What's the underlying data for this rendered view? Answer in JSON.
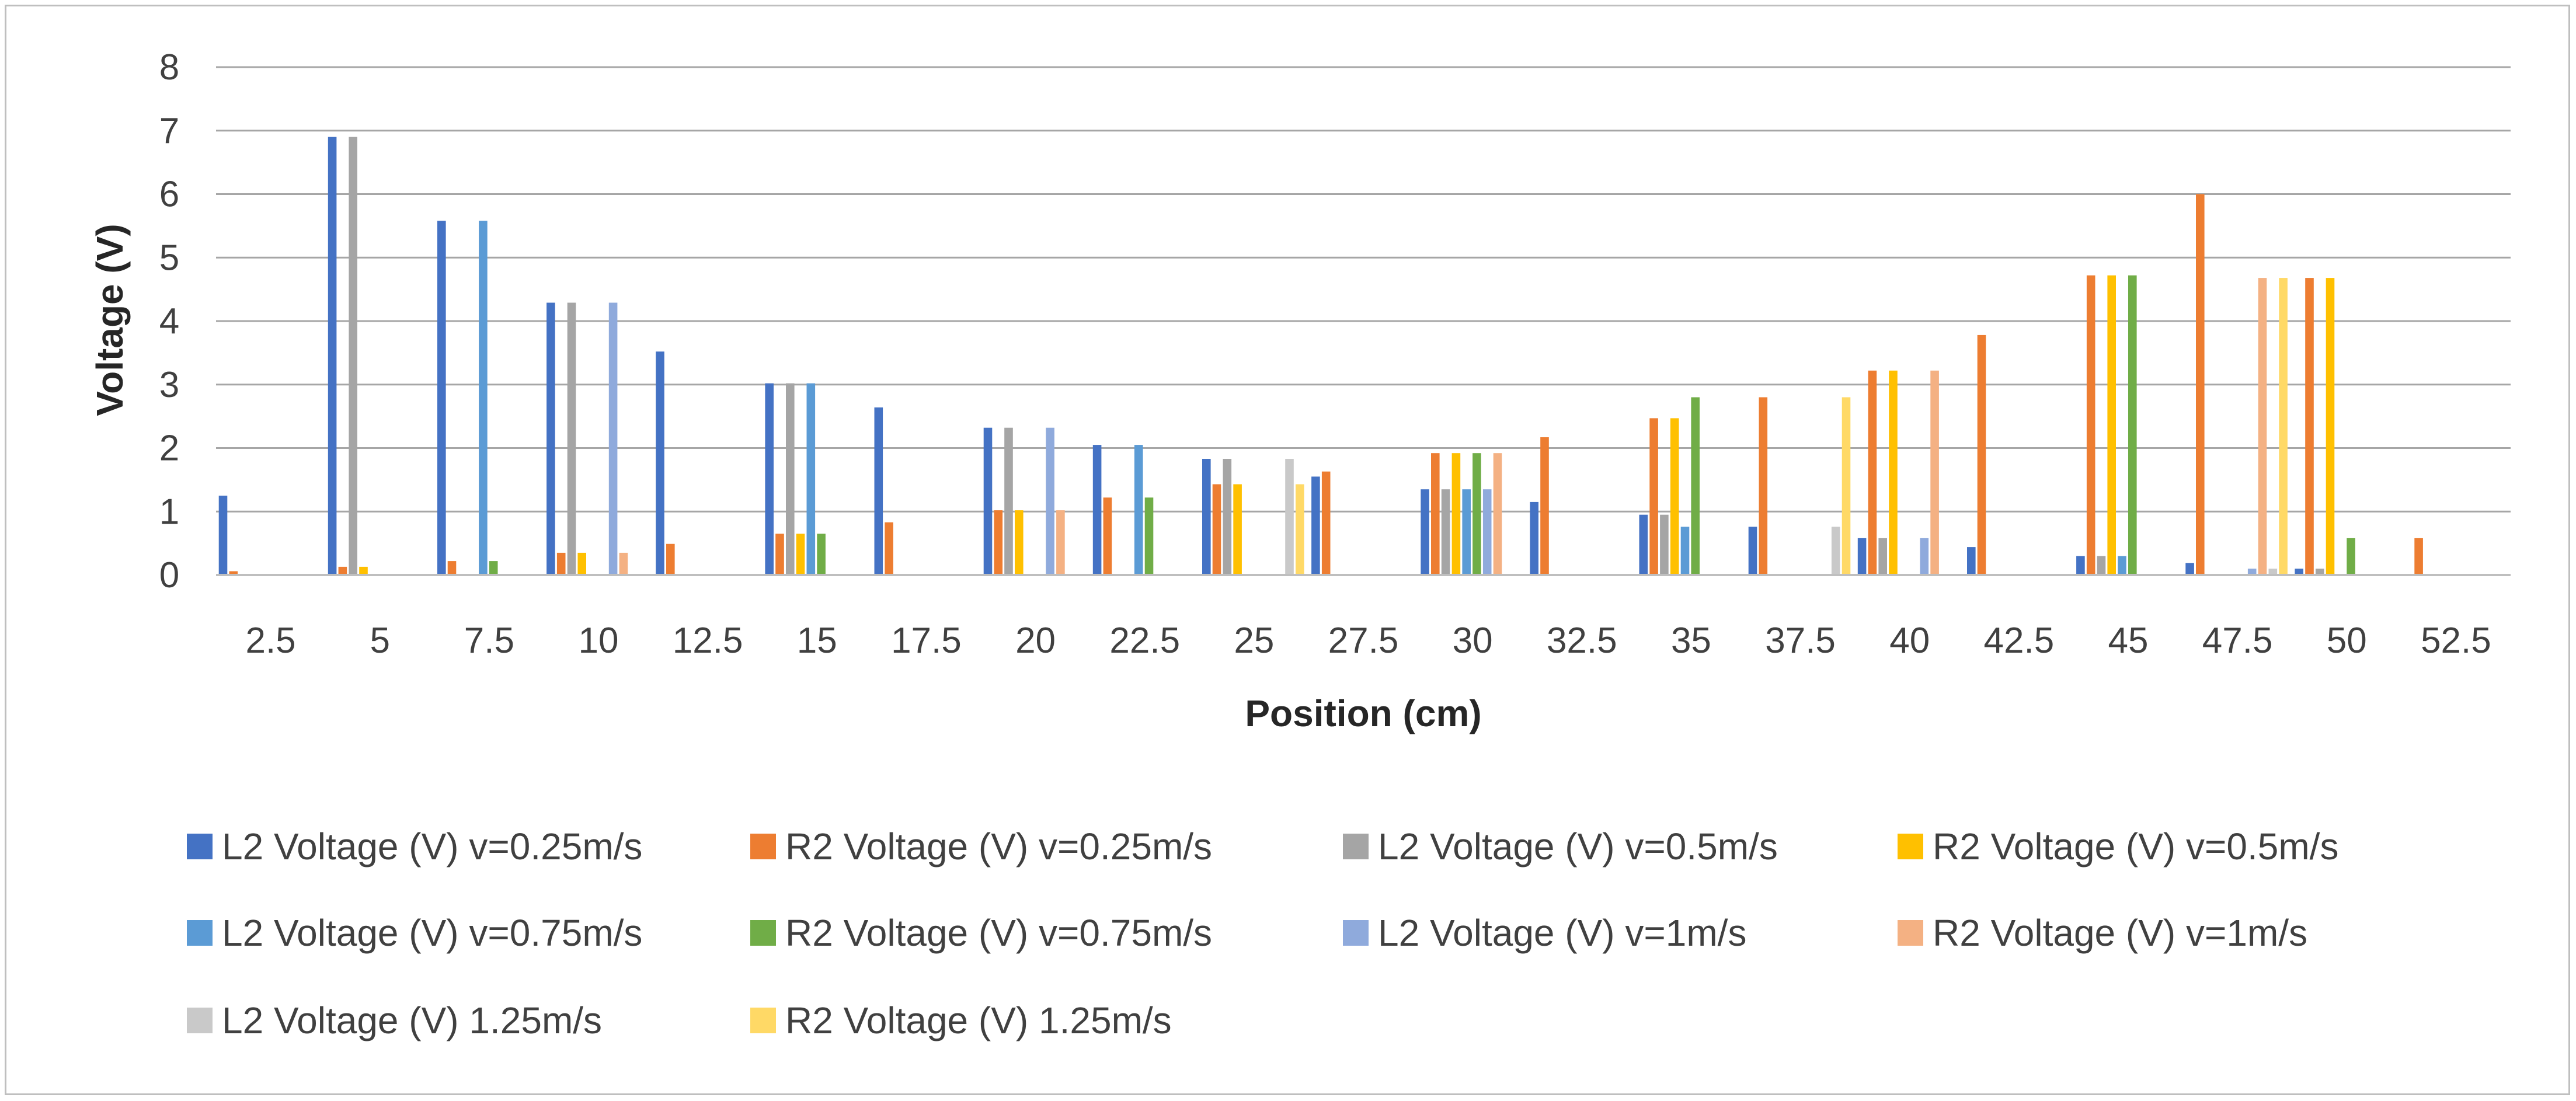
{
  "chart_data": {
    "type": "bar",
    "title": "",
    "xlabel": "Position (cm)",
    "ylabel": "Voltage (V)",
    "ylim": [
      0,
      8
    ],
    "yticks": [
      "0",
      "1",
      "2",
      "3",
      "4",
      "5",
      "6",
      "7",
      "8"
    ],
    "grid": true,
    "legend_position": "bottom",
    "categories": [
      "2.5",
      "5",
      "7.5",
      "10",
      "12.5",
      "15",
      "17.5",
      "20",
      "22.5",
      "25",
      "27.5",
      "30",
      "32.5",
      "35",
      "37.5",
      "40",
      "42.5",
      "45",
      "47.5",
      "50",
      "52.5"
    ],
    "series": [
      {
        "name": "L2 Voltage (V) v=0.25m/s",
        "color": "#4472C4",
        "values": [
          1.25,
          6.9,
          5.58,
          4.29,
          3.52,
          3.02,
          2.64,
          2.32,
          2.05,
          1.83,
          1.55,
          1.35,
          1.15,
          0.95,
          0.76,
          0.58,
          0.44,
          0.3,
          0.19,
          0.1,
          0
        ]
      },
      {
        "name": "R2 Voltage (V) v=0.25m/s",
        "color": "#ED7D31",
        "values": [
          0.06,
          0.13,
          0.22,
          0.35,
          0.49,
          0.65,
          0.83,
          1.02,
          1.22,
          1.43,
          1.63,
          1.92,
          2.17,
          2.47,
          2.8,
          3.22,
          3.78,
          4.72,
          6.0,
          4.68,
          0.58
        ]
      },
      {
        "name": "L2 Voltage (V) v=0.5m/s",
        "color": "#A5A5A5",
        "values": [
          0,
          6.9,
          0,
          4.29,
          0,
          3.02,
          0,
          2.32,
          0,
          1.83,
          0,
          1.35,
          0,
          0.95,
          0,
          0.58,
          0,
          0.3,
          0,
          0.1,
          0
        ]
      },
      {
        "name": "R2 Voltage (V) v=0.5m/s",
        "color": "#FFC000",
        "values": [
          0,
          0.13,
          0,
          0.35,
          0,
          0.65,
          0,
          1.02,
          0,
          1.43,
          0,
          1.92,
          0,
          2.47,
          0,
          3.22,
          0,
          4.72,
          0,
          4.68,
          0
        ]
      },
      {
        "name": "L2 Voltage (V) v=0.75m/s",
        "color": "#5B9BD5",
        "values": [
          0,
          0,
          5.58,
          0,
          0,
          3.02,
          0,
          0,
          2.05,
          0,
          0,
          1.35,
          0,
          0.76,
          0,
          0,
          0,
          0.3,
          0,
          0,
          0
        ]
      },
      {
        "name": "R2 Voltage (V) v=0.75m/s",
        "color": "#70AD47",
        "values": [
          0,
          0,
          0.22,
          0,
          0,
          0.65,
          0,
          0,
          1.22,
          0,
          0,
          1.92,
          0,
          2.8,
          0,
          0,
          0,
          4.72,
          0,
          0.58,
          0
        ]
      },
      {
        "name": "L2 Voltage (V) v=1m/s",
        "color": "#8FAADC",
        "values": [
          0,
          0,
          0,
          4.29,
          0,
          0,
          0,
          2.32,
          0,
          0,
          0,
          1.35,
          0,
          0,
          0,
          0.58,
          0,
          0,
          0.1,
          0,
          0
        ]
      },
      {
        "name": "R2 Voltage (V) v=1m/s",
        "color": "#F4B183",
        "values": [
          0,
          0,
          0,
          0.35,
          0,
          0,
          0,
          1.02,
          0,
          0,
          0,
          1.92,
          0,
          0,
          0,
          3.22,
          0,
          0,
          4.68,
          0,
          0
        ]
      },
      {
        "name": "L2 Voltage (V) 1.25m/s",
        "color": "#C9C9C9",
        "values": [
          0,
          0,
          0,
          0,
          0,
          0,
          0,
          0,
          0,
          1.83,
          0,
          0,
          0,
          0,
          0.76,
          0,
          0,
          0,
          0.1,
          0,
          0
        ]
      },
      {
        "name": "R2 Voltage (V) 1.25m/s",
        "color": "#FFD966",
        "values": [
          0,
          0,
          0,
          0,
          0,
          0,
          0,
          0,
          0,
          1.43,
          0,
          0,
          0,
          0,
          2.8,
          0,
          0,
          0,
          4.68,
          0,
          0
        ]
      }
    ]
  }
}
